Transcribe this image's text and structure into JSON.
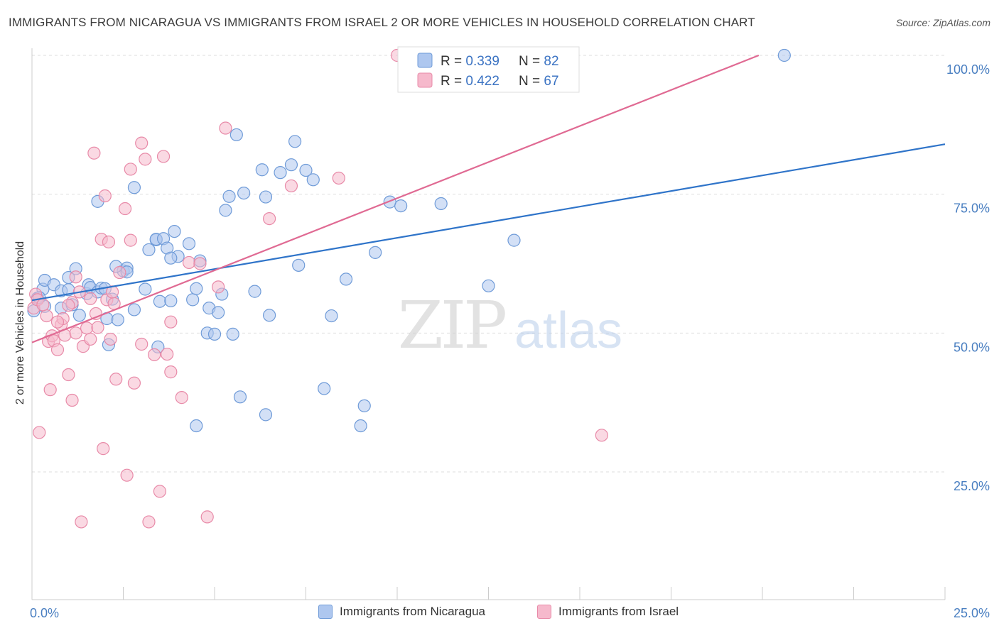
{
  "title": "IMMIGRANTS FROM NICARAGUA VS IMMIGRANTS FROM ISRAEL 2 OR MORE VEHICLES IN HOUSEHOLD CORRELATION CHART",
  "source": "Source: ZipAtlas.com",
  "watermark": {
    "zip": "ZIP",
    "atlas": "atlas"
  },
  "colors": {
    "blue_fill": "#aec7ef",
    "blue_stroke": "#6f9bd8",
    "blue_line": "#2f74c9",
    "pink_fill": "#f6b9cc",
    "pink_stroke": "#e88aa8",
    "pink_line": "#e06a93",
    "tick_label": "#4a7fc1",
    "grid": "#dddddd"
  },
  "legend_top": [
    {
      "r_label": "R = ",
      "r_value": "0.339",
      "n_label": "N = ",
      "n_value": "82"
    },
    {
      "r_label": "R = ",
      "r_value": "0.422",
      "n_label": "N = ",
      "n_value": "67"
    }
  ],
  "chart_data": {
    "type": "scatter",
    "title": "IMMIGRANTS FROM NICARAGUA VS IMMIGRANTS FROM ISRAEL 2 OR MORE VEHICLES IN HOUSEHOLD CORRELATION CHART",
    "xlabel": "",
    "ylabel": "2 or more Vehicles in Household",
    "xlim": [
      0,
      25
    ],
    "ylim": [
      2,
      100
    ],
    "x_tick_labels": [
      "0.0%",
      "25.0%"
    ],
    "y_ticks": [
      25,
      50,
      75,
      100
    ],
    "y_tick_labels": [
      "25.0%",
      "50.0%",
      "75.0%",
      "100.0%"
    ],
    "grid": true,
    "legend_placement": "bottom",
    "series": [
      {
        "name": "Immigrants from Nicaragua",
        "R": 0.339,
        "N": 82,
        "trend": [
          [
            0,
            55.9
          ],
          [
            25,
            84.0
          ]
        ],
        "points": [
          [
            0.15,
            56.3
          ],
          [
            0.3,
            57.9
          ],
          [
            0.35,
            59.5
          ],
          [
            0.35,
            54.8
          ],
          [
            0.6,
            58.7
          ],
          [
            0.8,
            54.5
          ],
          [
            0.8,
            57.6
          ],
          [
            1.0,
            57.8
          ],
          [
            1.1,
            55.1
          ],
          [
            1.2,
            61.6
          ],
          [
            1.3,
            53.2
          ],
          [
            1.5,
            57.1
          ],
          [
            1.55,
            58.7
          ],
          [
            1.6,
            58.2
          ],
          [
            1.8,
            57.4
          ],
          [
            1.8,
            73.7
          ],
          [
            1.9,
            58.1
          ],
          [
            2.0,
            58.0
          ],
          [
            2.05,
            52.6
          ],
          [
            2.1,
            47.9
          ],
          [
            2.2,
            56.1
          ],
          [
            2.35,
            52.4
          ],
          [
            2.5,
            61.2
          ],
          [
            2.6,
            61.7
          ],
          [
            2.6,
            61.0
          ],
          [
            2.8,
            76.2
          ],
          [
            2.8,
            54.2
          ],
          [
            3.1,
            57.9
          ],
          [
            3.2,
            65.0
          ],
          [
            3.4,
            66.8
          ],
          [
            3.4,
            66.9
          ],
          [
            3.45,
            47.5
          ],
          [
            3.5,
            55.7
          ],
          [
            3.6,
            67.0
          ],
          [
            3.7,
            65.3
          ],
          [
            3.8,
            55.8
          ],
          [
            3.9,
            68.3
          ],
          [
            4.0,
            63.8
          ],
          [
            4.3,
            66.1
          ],
          [
            4.4,
            56.0
          ],
          [
            4.5,
            58.0
          ],
          [
            4.6,
            63.0
          ],
          [
            4.8,
            50.0
          ],
          [
            4.85,
            54.5
          ],
          [
            5.0,
            49.8
          ],
          [
            5.1,
            53.7
          ],
          [
            5.2,
            57.0
          ],
          [
            5.3,
            72.1
          ],
          [
            5.4,
            74.6
          ],
          [
            5.5,
            49.8
          ],
          [
            5.6,
            85.7
          ],
          [
            5.8,
            75.2
          ],
          [
            6.1,
            57.5
          ],
          [
            6.3,
            79.4
          ],
          [
            6.4,
            74.5
          ],
          [
            6.5,
            53.2
          ],
          [
            6.8,
            78.9
          ],
          [
            7.1,
            80.3
          ],
          [
            7.2,
            84.5
          ],
          [
            7.3,
            62.2
          ],
          [
            7.5,
            79.3
          ],
          [
            7.7,
            77.6
          ],
          [
            8.0,
            40.0
          ],
          [
            8.2,
            53.1
          ],
          [
            8.6,
            59.7
          ],
          [
            9.0,
            33.3
          ],
          [
            9.1,
            36.9
          ],
          [
            9.4,
            64.5
          ],
          [
            9.8,
            73.6
          ],
          [
            10.1,
            72.9
          ],
          [
            11.2,
            73.3
          ],
          [
            12.5,
            58.5
          ],
          [
            13.2,
            66.7
          ],
          [
            20.6,
            100.0
          ],
          [
            4.5,
            33.3
          ],
          [
            5.7,
            38.5
          ],
          [
            6.4,
            35.3
          ],
          [
            1.0,
            60.0
          ],
          [
            0.2,
            56.4
          ],
          [
            0.05,
            54.0
          ],
          [
            3.8,
            63.5
          ],
          [
            2.3,
            62.0
          ]
        ]
      },
      {
        "name": "Immigrants from Israel",
        "R": 0.422,
        "N": 67,
        "trend": [
          [
            0,
            48.3
          ],
          [
            19.9,
            100.0
          ]
        ],
        "points": [
          [
            0.05,
            54.5
          ],
          [
            0.1,
            57.0
          ],
          [
            0.2,
            32.1
          ],
          [
            0.4,
            53.1
          ],
          [
            0.45,
            48.5
          ],
          [
            0.5,
            39.8
          ],
          [
            0.55,
            49.5
          ],
          [
            0.6,
            48.6
          ],
          [
            0.7,
            47.0
          ],
          [
            0.8,
            51.5
          ],
          [
            0.85,
            52.6
          ],
          [
            0.9,
            49.6
          ],
          [
            1.0,
            42.5
          ],
          [
            1.1,
            37.9
          ],
          [
            1.1,
            55.5
          ],
          [
            1.2,
            60.1
          ],
          [
            1.3,
            57.4
          ],
          [
            1.35,
            16.0
          ],
          [
            1.4,
            47.6
          ],
          [
            1.5,
            50.9
          ],
          [
            1.6,
            56.2
          ],
          [
            1.6,
            48.9
          ],
          [
            1.7,
            82.4
          ],
          [
            1.75,
            53.5
          ],
          [
            1.8,
            51.0
          ],
          [
            1.9,
            66.9
          ],
          [
            1.95,
            29.2
          ],
          [
            2.0,
            74.7
          ],
          [
            2.05,
            56.0
          ],
          [
            2.1,
            66.4
          ],
          [
            2.15,
            48.9
          ],
          [
            2.25,
            55.3
          ],
          [
            2.3,
            41.7
          ],
          [
            2.4,
            60.9
          ],
          [
            2.55,
            72.4
          ],
          [
            2.6,
            24.4
          ],
          [
            2.7,
            66.7
          ],
          [
            2.7,
            79.5
          ],
          [
            2.8,
            41.0
          ],
          [
            3.0,
            84.2
          ],
          [
            3.1,
            81.3
          ],
          [
            3.2,
            16.0
          ],
          [
            3.35,
            46.1
          ],
          [
            3.5,
            21.5
          ],
          [
            3.6,
            81.8
          ],
          [
            3.7,
            46.2
          ],
          [
            3.8,
            43.0
          ],
          [
            3.8,
            52.0
          ],
          [
            4.1,
            38.4
          ],
          [
            4.3,
            62.7
          ],
          [
            4.8,
            16.9
          ],
          [
            5.1,
            58.3
          ],
          [
            5.3,
            86.9
          ],
          [
            6.5,
            70.6
          ],
          [
            7.1,
            76.5
          ],
          [
            8.4,
            77.9
          ],
          [
            10.0,
            100.0
          ],
          [
            11.8,
            100.0
          ],
          [
            15.6,
            31.6
          ],
          [
            0.15,
            56.0
          ],
          [
            0.3,
            55.1
          ],
          [
            1.0,
            55.0
          ],
          [
            1.2,
            50.0
          ],
          [
            2.2,
            57.4
          ],
          [
            3.0,
            48.0
          ],
          [
            4.6,
            62.5
          ],
          [
            0.7,
            52.0
          ]
        ]
      }
    ]
  },
  "bottom_legend": [
    "Immigrants from Nicaragua",
    "Immigrants from Israel"
  ]
}
